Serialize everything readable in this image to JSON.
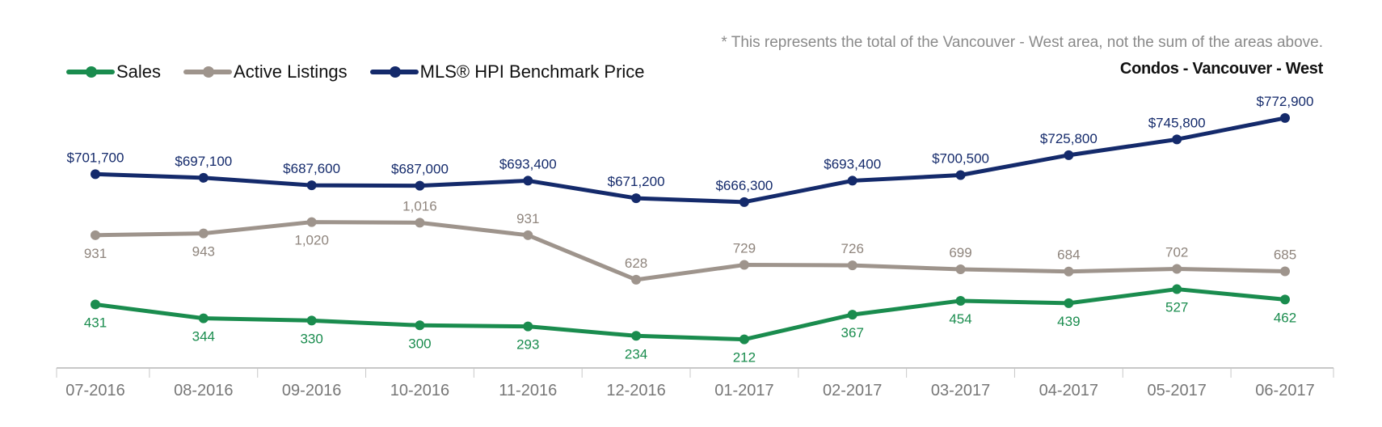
{
  "note": "* This represents the total of the Vancouver - West area, not the sum of the areas above.",
  "subtitle": "Condos - Vancouver - West",
  "chart_data": {
    "type": "line",
    "categories": [
      "07-2016",
      "08-2016",
      "09-2016",
      "10-2016",
      "11-2016",
      "12-2016",
      "01-2017",
      "02-2017",
      "03-2017",
      "04-2017",
      "05-2017",
      "06-2017"
    ],
    "series": [
      {
        "name": "Sales",
        "color": "#1a8c4e",
        "values": [
          431,
          344,
          330,
          300,
          293,
          234,
          212,
          367,
          454,
          439,
          527,
          462
        ],
        "labels": [
          "431",
          "344",
          "330",
          "300",
          "293",
          "234",
          "212",
          "367",
          "454",
          "439",
          "527",
          "462"
        ]
      },
      {
        "name": "Active Listings",
        "color": "#9e948c",
        "values": [
          931,
          943,
          1020,
          1016,
          931,
          628,
          729,
          726,
          699,
          684,
          702,
          685
        ],
        "labels": [
          "931",
          "943",
          "1,020",
          "1,016",
          "931",
          "628",
          "729",
          "726",
          "699",
          "684",
          "702",
          "685"
        ]
      },
      {
        "name": "MLS® HPI Benchmark Price",
        "color": "#142a6b",
        "values": [
          701700,
          697100,
          687600,
          687000,
          693400,
          671200,
          666300,
          693400,
          700500,
          725800,
          745800,
          772900
        ],
        "labels": [
          "$701,700",
          "$697,100",
          "$687,600",
          "$687,000",
          "$693,400",
          "$671,200",
          "$666,300",
          "$693,400",
          "$700,500",
          "$725,800",
          "$745,800",
          "$772,900"
        ]
      }
    ],
    "legend_position": "top-left",
    "grid": false
  }
}
